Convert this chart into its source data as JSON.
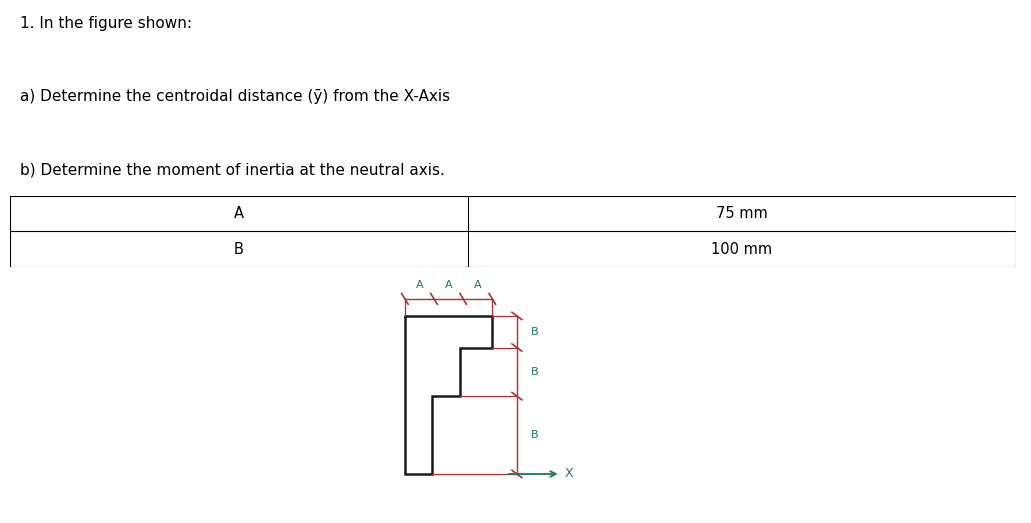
{
  "title_line1": "1. In the figure shown:",
  "line_a": "a) Determine the centroidal distance (ȳ) from the X-Axis",
  "line_b": "b) Determine the moment of inertia at the neutral axis.",
  "table_col1": [
    "A",
    "B"
  ],
  "table_col2": [
    "75 mm",
    "100 mm"
  ],
  "bg_color": "#ffffff",
  "text_color": "#000000",
  "table_border_color": "#000000",
  "fig_bg": "#b8b8b8",
  "shape_color": "#1a1a1a",
  "dim_line_color": "#b03030",
  "label_color": "#1a7a4a",
  "x_axis_color": "#1a7a4a",
  "font_size_text": 11,
  "font_size_table": 10.5,
  "font_size_diagram": 8
}
